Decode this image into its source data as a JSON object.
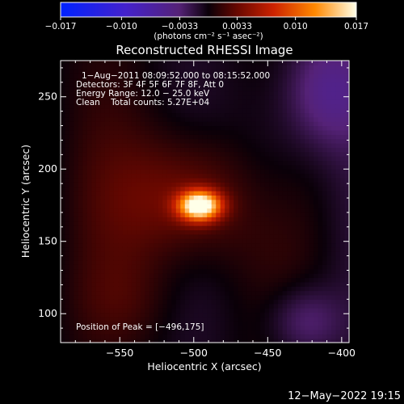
{
  "chart_data": {
    "type": "heatmap",
    "title": "Reconstructed RHESSI Image",
    "xlabel": "Heliocentric X (arcsec)",
    "ylabel": "Heliocentric Y (arcsec)",
    "xlim": [
      -590,
      -395
    ],
    "ylim": [
      80,
      275
    ],
    "xticks": [
      -550,
      -500,
      -450,
      -400
    ],
    "xtick_labels": [
      "−550",
      "−500",
      "−450",
      "−400"
    ],
    "yticks": [
      100,
      150,
      200,
      250
    ],
    "ytick_labels": [
      "100",
      "150",
      "200",
      "250"
    ],
    "colorbar": {
      "colormap": "IDL Red Temperature",
      "range": [
        -0.017,
        0.017
      ],
      "ticks": [
        -0.017,
        -0.01,
        -0.0033,
        0.0033,
        0.01,
        0.017
      ],
      "tick_labels": [
        "−0.017",
        "−0.010",
        "−0.0033",
        "0.0033",
        "0.010",
        "0.017"
      ],
      "label": "(photons cm⁻² s⁻¹ asec⁻²)"
    },
    "annotations": [
      "1−Aug−2011 08:09:52.000 to 08:15:52.000",
      "Detectors: 3F 4F 5F 6F 7F 8F, Att 0",
      "Energy Range: 12.0 − 25.0 keV",
      "Clean    Total counts: 5.27E+04"
    ],
    "peak_label": "Position of Peak = [−496,175]",
    "peak": [
      -496,
      175
    ],
    "peak_value": 0.017
  },
  "footer": {
    "timestamp": "12−May−2022 19:15"
  }
}
